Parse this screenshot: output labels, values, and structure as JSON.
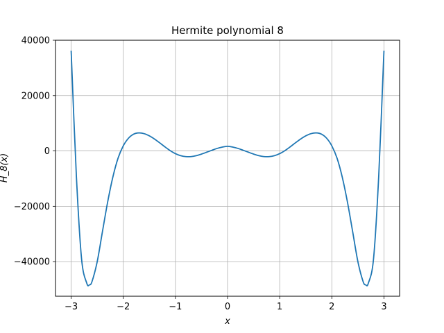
{
  "chart_data": {
    "type": "line",
    "title": "Hermite polynomial 8",
    "xlabel": "x",
    "ylabel": "H_8(x)",
    "xlim": [
      -3.3,
      3.3
    ],
    "ylim": [
      -52500,
      40000
    ],
    "grid": true,
    "x_ticks": [
      -3,
      -2,
      -1,
      0,
      1,
      2,
      3
    ],
    "x_tick_labels": [
      "−3",
      "−2",
      "−1",
      "0",
      "1",
      "2",
      "3"
    ],
    "y_ticks": [
      -40000,
      -20000,
      0,
      20000,
      40000
    ],
    "y_tick_labels": [
      "−40000",
      "−20000",
      "0",
      "20000",
      "40000"
    ],
    "series": [
      {
        "color": "#1f77b4",
        "x": [
          -3.0,
          -2.9,
          -2.8,
          -2.7,
          -2.65,
          -2.6,
          -2.5,
          -2.4,
          -2.3,
          -2.2,
          -2.1,
          -2.0,
          -1.9,
          -1.8,
          -1.7,
          -1.6,
          -1.5,
          -1.4,
          -1.3,
          -1.2,
          -1.1,
          -1.0,
          -0.9,
          -0.8,
          -0.7,
          -0.6,
          -0.5,
          -0.4,
          -0.3,
          -0.2,
          -0.1,
          0.0,
          0.1,
          0.2,
          0.3,
          0.4,
          0.5,
          0.6,
          0.7,
          0.8,
          0.9,
          1.0,
          1.1,
          1.2,
          1.3,
          1.4,
          1.5,
          1.6,
          1.7,
          1.8,
          1.9,
          2.0,
          2.1,
          2.2,
          2.3,
          2.4,
          2.5,
          2.6,
          2.65,
          2.7,
          2.8,
          2.9,
          3.0
        ],
        "y": [
          36240,
          -8900,
          -39000,
          -47800,
          -48400,
          -47200,
          -40000,
          -29200,
          -18500,
          -9450,
          -2600,
          1840,
          4610,
          6080,
          6520,
          6240,
          5450,
          4290,
          2910,
          1460,
          120,
          -980,
          -1710,
          -2050,
          -2040,
          -1700,
          -1140,
          -460,
          250,
          910,
          1390,
          1680,
          1390,
          910,
          250,
          -460,
          -1140,
          -1700,
          -2040,
          -2050,
          -1710,
          -980,
          120,
          1460,
          2910,
          4290,
          5450,
          6240,
          6520,
          6080,
          4610,
          1840,
          -2600,
          -9450,
          -18500,
          -29200,
          -40000,
          -47200,
          -48400,
          -47800,
          -39000,
          -8900,
          36240
        ]
      }
    ]
  }
}
